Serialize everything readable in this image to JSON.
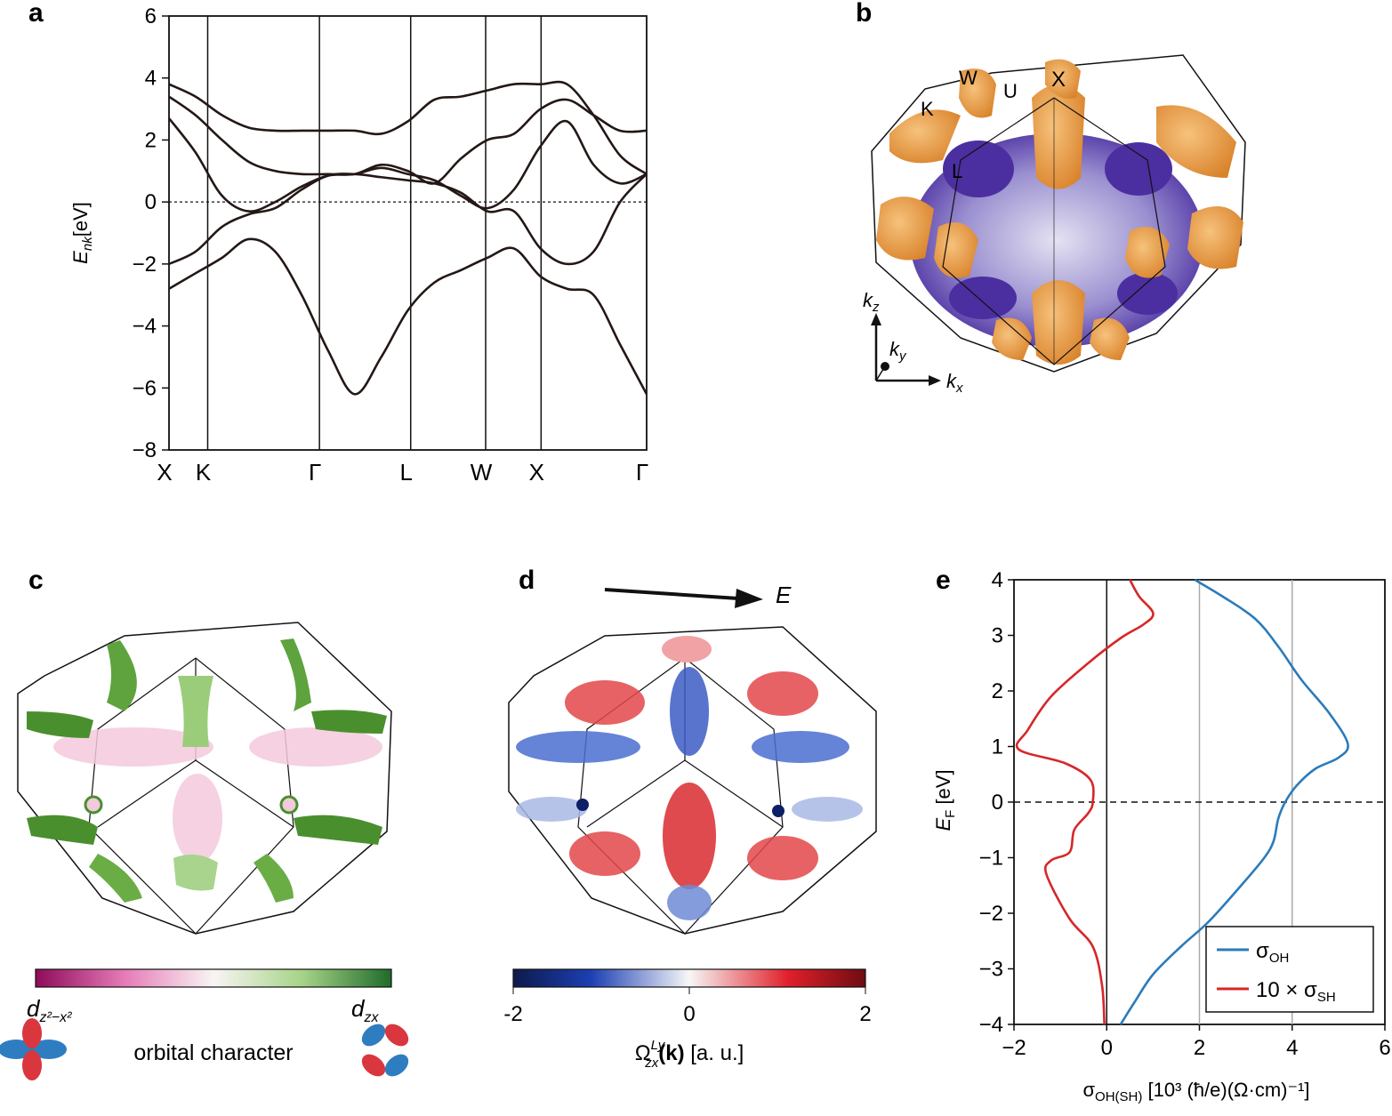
{
  "panel_labels": {
    "a": "a",
    "b": "b",
    "c": "c",
    "d": "d",
    "e": "e"
  },
  "chart_data": [
    {
      "panel": "a",
      "type": "line",
      "ylabel_main": "E",
      "ylabel_sub": "nk",
      "ylabel_unit": "[eV]",
      "ylim": [
        -8,
        6
      ],
      "yticks": [
        "6",
        "4",
        "2",
        "0",
        "−2",
        "−4",
        "−6",
        "−8"
      ],
      "k_points": [
        "X",
        "K",
        "Γ",
        "L",
        "W",
        "X",
        "Γ"
      ],
      "fermi_line": 0,
      "bands": [
        {
          "values": [
            -2.8,
            -2.3,
            -1.8,
            -1.2,
            -1.6,
            -3.0,
            -4.8,
            -6.2,
            -5.0,
            -3.5,
            -2.6,
            -2.2,
            -1.8,
            -1.5,
            -2.4,
            -2.8,
            -3.0,
            -4.6,
            -6.2
          ]
        },
        {
          "values": [
            -2.0,
            -1.6,
            -0.8,
            -0.4,
            -0.2,
            0.4,
            0.85,
            0.9,
            0.8,
            0.7,
            0.6,
            0.3,
            -0.3,
            -0.3,
            -1.5,
            -2.0,
            -1.6,
            0.0,
            0.9
          ]
        },
        {
          "values": [
            2.7,
            1.6,
            0.2,
            -0.3,
            0.0,
            0.5,
            0.85,
            0.9,
            1.1,
            0.9,
            0.7,
            0.2,
            -0.2,
            0.4,
            1.8,
            2.6,
            1.2,
            0.6,
            0.9
          ]
        },
        {
          "values": [
            3.4,
            2.8,
            2.0,
            1.3,
            1.0,
            0.9,
            0.9,
            0.9,
            1.2,
            1.0,
            0.6,
            1.4,
            2.0,
            2.2,
            3.0,
            3.3,
            2.8,
            2.3,
            2.3
          ]
        },
        {
          "values": [
            3.8,
            3.4,
            2.8,
            2.4,
            2.3,
            2.3,
            2.3,
            2.3,
            2.2,
            2.6,
            3.3,
            3.4,
            3.6,
            3.8,
            3.8,
            3.8,
            2.8,
            1.5,
            0.9
          ]
        }
      ]
    },
    {
      "panel": "e",
      "type": "line",
      "xlabel": "σ",
      "xlabel_sub": "OH(SH)",
      "xlabel_rest": " [10³ (ħ/e)(Ω·cm)⁻¹]",
      "ylabel_main": "E",
      "ylabel_sub": "F",
      "ylabel_unit": " [eV]",
      "xlim": [
        -2,
        6
      ],
      "ylim": [
        -4,
        4
      ],
      "xticks": [
        "−2",
        "0",
        "2",
        "4",
        "6"
      ],
      "yticks": [
        "4",
        "3",
        "2",
        "1",
        "0",
        "−1",
        "−2",
        "−3",
        "−4"
      ],
      "grid_x": [
        2,
        4
      ],
      "zero_x": 0,
      "fermi_line": 0,
      "legend": "bottom-right",
      "series": [
        {
          "name": "σOH",
          "legend_main": "σ",
          "legend_sub": "OH",
          "color": "#2b7bba",
          "x": [
            0.3,
            0.6,
            1.0,
            1.6,
            2.2,
            2.9,
            3.4,
            3.6,
            3.7,
            3.85,
            4.1,
            4.5,
            5.0,
            5.2,
            4.8,
            4.2,
            3.7,
            3.2,
            2.5,
            1.9
          ],
          "y": [
            -4.0,
            -3.6,
            -3.1,
            -2.6,
            -2.15,
            -1.5,
            -1.0,
            -0.7,
            -0.3,
            0.0,
            0.3,
            0.6,
            0.8,
            1.05,
            1.6,
            2.2,
            2.8,
            3.3,
            3.7,
            4.0
          ]
        },
        {
          "name": "10 × σSH",
          "legend_main": "10 × σ",
          "legend_sub": "SH",
          "color": "#d62728",
          "x": [
            -0.05,
            -0.1,
            -0.3,
            -0.8,
            -1.3,
            -1.2,
            -0.8,
            -0.7,
            -0.4,
            -0.3,
            -0.35,
            -0.9,
            -1.9,
            -1.7,
            -1.2,
            -0.4,
            0.3,
            0.8,
            1.0,
            0.7,
            0.5
          ],
          "y": [
            -4.0,
            -3.3,
            -2.6,
            -2.1,
            -1.3,
            -1.05,
            -0.9,
            -0.5,
            -0.2,
            0.0,
            0.4,
            0.7,
            0.95,
            1.3,
            1.9,
            2.5,
            2.95,
            3.2,
            3.4,
            3.7,
            4.0
          ]
        }
      ]
    }
  ],
  "panel_b": {
    "points": [
      "W",
      "U",
      "X",
      "K",
      "L"
    ],
    "axes": {
      "kz": "k",
      "kz_sub": "z",
      "ky": "k",
      "ky_sub": "y",
      "kx": "k",
      "kx_sub": "x"
    }
  },
  "panel_c": {
    "colorbar_left_main": "d",
    "colorbar_left_sub": "z²−x²",
    "colorbar_right_main": "d",
    "colorbar_right_sub": "zx",
    "caption": "orbital character"
  },
  "panel_d": {
    "field_label": "E",
    "ticks": [
      "-2",
      "0",
      "2"
    ],
    "caption_main": "Ω",
    "caption_sup": "Ly",
    "caption_sub": "zx",
    "caption_bold": "(k)",
    "caption_unit": " [a. u.]"
  },
  "colors": {
    "orange": "#e99a3a",
    "purple": "#4b2fa0",
    "green": "#3d8f2a",
    "pink": "#c2186f",
    "red": "#d41f24",
    "blue": "#1e3fa5"
  }
}
